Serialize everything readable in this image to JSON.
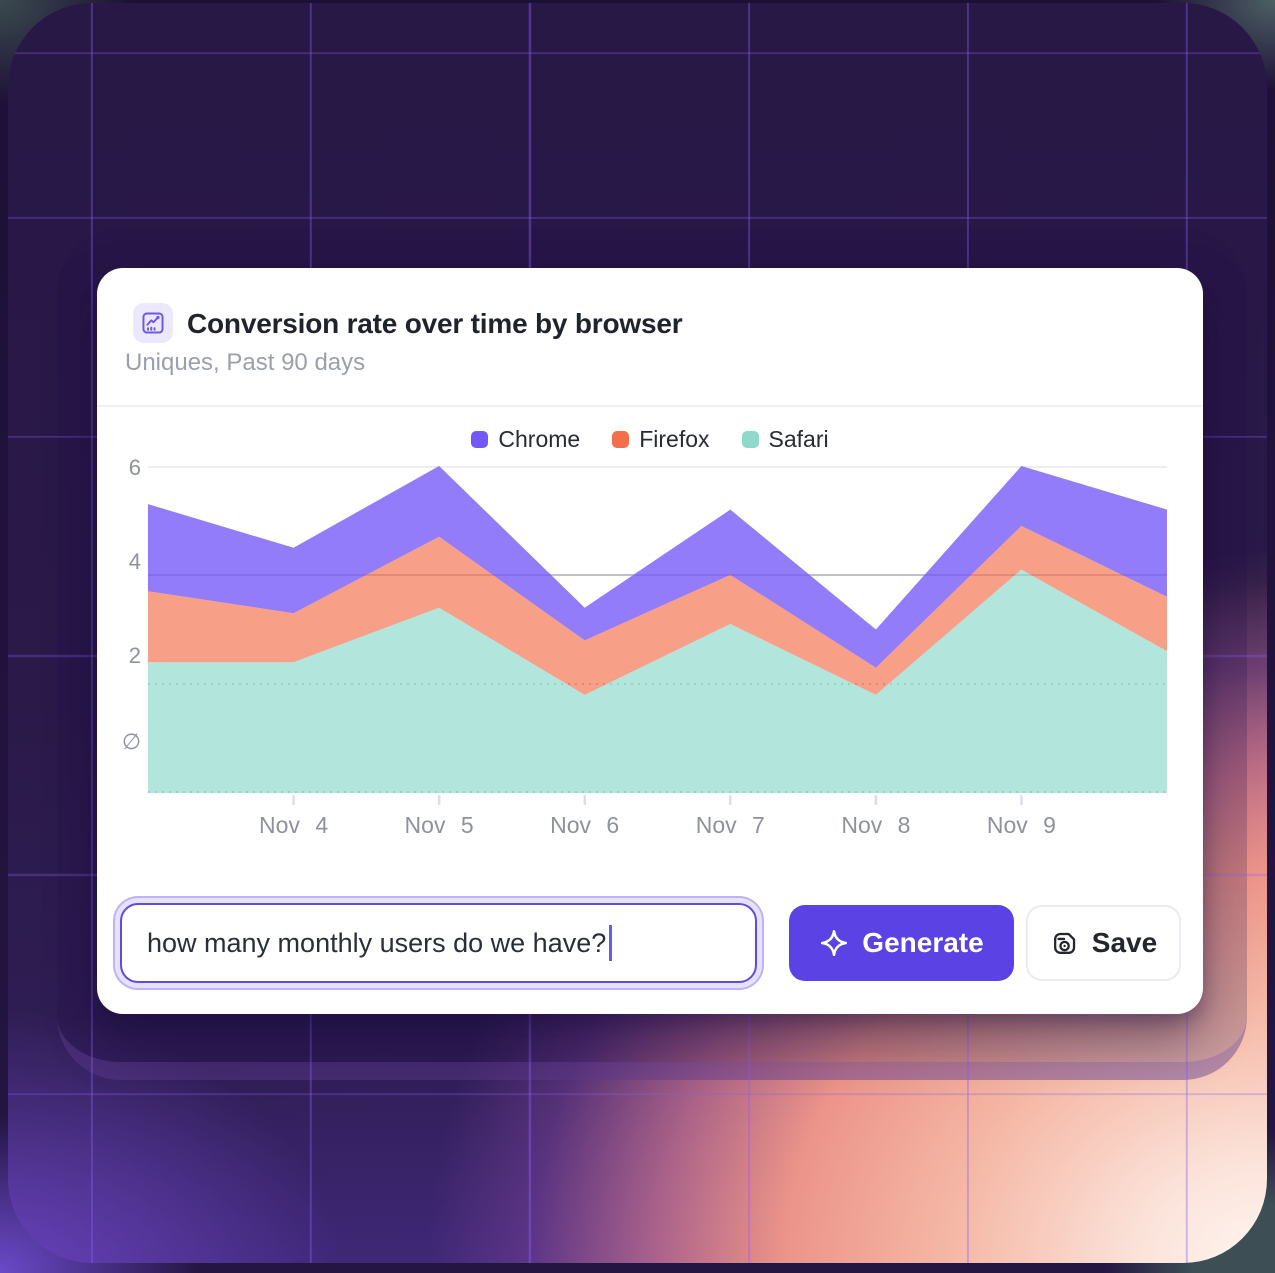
{
  "card": {
    "title": "Conversion rate over time by browser",
    "subtitle": "Uniques, Past 90 days",
    "header_icon": "line-chart-icon"
  },
  "chart_data": {
    "type": "area",
    "stacked": true,
    "title": "Conversion rate over time by browser",
    "categories": [
      "",
      "Nov 4",
      "Nov 5",
      "Nov 6",
      "Nov 7",
      "Nov 8",
      "Nov 9",
      ""
    ],
    "series": [
      {
        "name": "Chrome",
        "color": "#7457f7",
        "area_opacity": 0.78,
        "values": [
          1.6,
          1.2,
          1.3,
          0.6,
          1.2,
          0.7,
          1.1,
          1.6
        ]
      },
      {
        "name": "Firefox",
        "color": "#f46e4b",
        "area_opacity": 0.66,
        "values": [
          1.3,
          0.9,
          1.3,
          1.0,
          0.9,
          0.5,
          0.8,
          1.0
        ]
      },
      {
        "name": "Safari",
        "color": "#8ed8cc",
        "area_opacity": 0.68,
        "values": [
          2.4,
          2.4,
          3.4,
          1.8,
          3.1,
          1.8,
          4.1,
          2.6
        ]
      }
    ],
    "ylim": [
      0,
      6
    ],
    "y_ticks": [
      6,
      4,
      2,
      0
    ],
    "y_tick_labels": [
      "6",
      "4",
      "2",
      "∅"
    ],
    "grid": true,
    "legend_position": "top-center"
  },
  "prompt_bar": {
    "input_value": "how many monthly users do we have?",
    "generate_label": "Generate",
    "save_label": "Save"
  },
  "colors": {
    "accent": "#5a42e4",
    "card_bg": "#ffffff",
    "panel_grid": "#8b5cf6",
    "glow_warm": "#f5b8a6",
    "chrome": "#7457f7",
    "firefox": "#f46e4b",
    "safari": "#8ed8cc"
  }
}
